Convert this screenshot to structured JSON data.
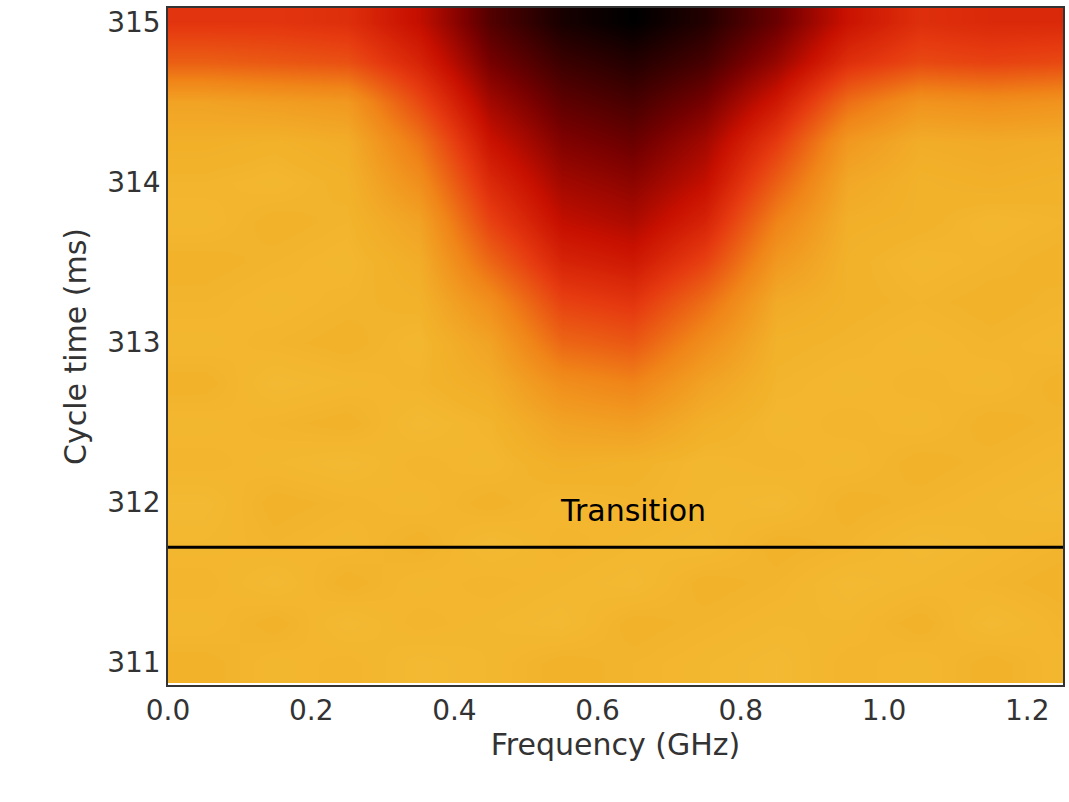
{
  "chart_data": {
    "type": "heatmap",
    "x_label": "Frequency (GHz)",
    "y_label": "Cycle time (ms)",
    "x": [
      0.05,
      0.15,
      0.25,
      0.35,
      0.45,
      0.55,
      0.65,
      0.75,
      0.85,
      0.95,
      1.05,
      1.15,
      1.25
    ],
    "y": [
      311.0,
      311.25,
      311.5,
      311.75,
      312.0,
      312.25,
      312.5,
      312.75,
      313.0,
      313.25,
      313.5,
      313.75,
      314.0,
      314.25,
      314.5,
      314.75,
      315.0
    ],
    "cells": [
      [
        12,
        10,
        11,
        9,
        10,
        12,
        11,
        10,
        9,
        11,
        10,
        12,
        10
      ],
      [
        10,
        12,
        9,
        11,
        10,
        9,
        12,
        11,
        10,
        10,
        12,
        9,
        11
      ],
      [
        11,
        9,
        12,
        10,
        11,
        10,
        9,
        12,
        11,
        9,
        10,
        11,
        12
      ],
      [
        10,
        11,
        10,
        12,
        9,
        11,
        10,
        9,
        12,
        11,
        9,
        10,
        11
      ],
      [
        9,
        12,
        11,
        10,
        12,
        10,
        11,
        10,
        9,
        12,
        11,
        10,
        9
      ],
      [
        11,
        10,
        9,
        11,
        10,
        13,
        12,
        10,
        11,
        10,
        12,
        11,
        10
      ],
      [
        10,
        11,
        12,
        9,
        11,
        18,
        20,
        13,
        10,
        11,
        10,
        12,
        11
      ],
      [
        12,
        9,
        10,
        11,
        14,
        26,
        30,
        18,
        11,
        10,
        11,
        10,
        12
      ],
      [
        10,
        11,
        12,
        10,
        18,
        38,
        42,
        26,
        12,
        11,
        10,
        11,
        10
      ],
      [
        11,
        10,
        11,
        12,
        26,
        48,
        52,
        36,
        15,
        12,
        11,
        12,
        11
      ],
      [
        12,
        11,
        10,
        14,
        38,
        58,
        62,
        48,
        22,
        12,
        10,
        11,
        12
      ],
      [
        10,
        12,
        11,
        18,
        48,
        66,
        70,
        58,
        30,
        13,
        12,
        10,
        11
      ],
      [
        11,
        10,
        12,
        26,
        56,
        72,
        76,
        66,
        40,
        16,
        12,
        13,
        12
      ],
      [
        13,
        12,
        14,
        34,
        64,
        78,
        82,
        72,
        50,
        22,
        14,
        15,
        14
      ],
      [
        18,
        20,
        22,
        46,
        72,
        84,
        88,
        80,
        62,
        36,
        24,
        26,
        24
      ],
      [
        40,
        42,
        44,
        58,
        80,
        90,
        94,
        88,
        74,
        54,
        46,
        48,
        46
      ],
      [
        52,
        52,
        54,
        66,
        86,
        96,
        100,
        94,
        82,
        64,
        54,
        56,
        56
      ]
    ],
    "color_range": [
      0,
      100
    ],
    "xlim": [
      0,
      1.25
    ],
    "ylim": [
      310.86,
      315.09
    ],
    "xticks": [
      {
        "value": 0,
        "label": "0.0"
      },
      0.2,
      0.4,
      0.6,
      0.8,
      {
        "value": 1,
        "label": "1.0"
      },
      1.2
    ],
    "yticks": [
      311,
      312,
      313,
      314,
      315
    ],
    "line": {
      "y": 311.72,
      "label": "Transition",
      "label_x": 0.65,
      "label_y": 311.95
    },
    "grid": false
  }
}
